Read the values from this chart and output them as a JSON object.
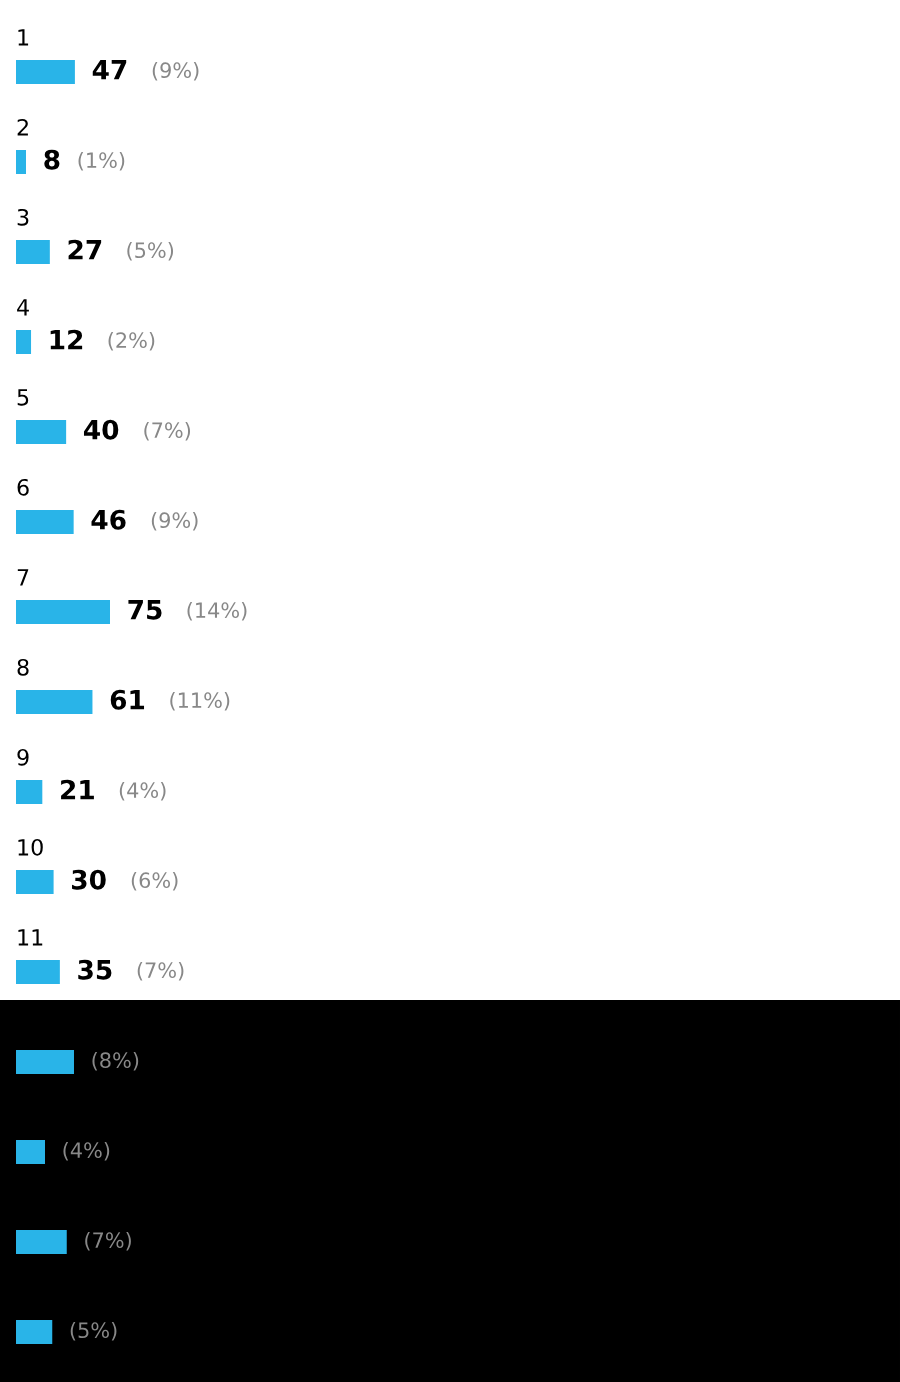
{
  "chart_data": [
    {
      "type": "bar",
      "orientation": "horizontal",
      "categories": [
        "1",
        "2",
        "3",
        "4",
        "5",
        "6",
        "7",
        "8",
        "9",
        "10",
        "11"
      ],
      "values": [
        47,
        8,
        27,
        12,
        40,
        46,
        75,
        61,
        21,
        30,
        35
      ],
      "value_labels": [
        "47 (9%)",
        "8 (1%)",
        "27 (5%)",
        "12 (2%)",
        "40 (7%)",
        "46 (9%)",
        "75 (14%)",
        "61 (11%)",
        "21 (4%)",
        "30 (6%)",
        "35 (7%)"
      ],
      "color": "#29b4e8"
    },
    {
      "type": "bar",
      "orientation": "horizontal",
      "categories": [
        null,
        null,
        null,
        null
      ],
      "values": [
        8,
        4,
        7,
        5
      ],
      "value_labels": [
        "(8%)",
        "(4%)",
        "(7%)",
        "(5%)"
      ],
      "color": "#29b4e8"
    }
  ]
}
